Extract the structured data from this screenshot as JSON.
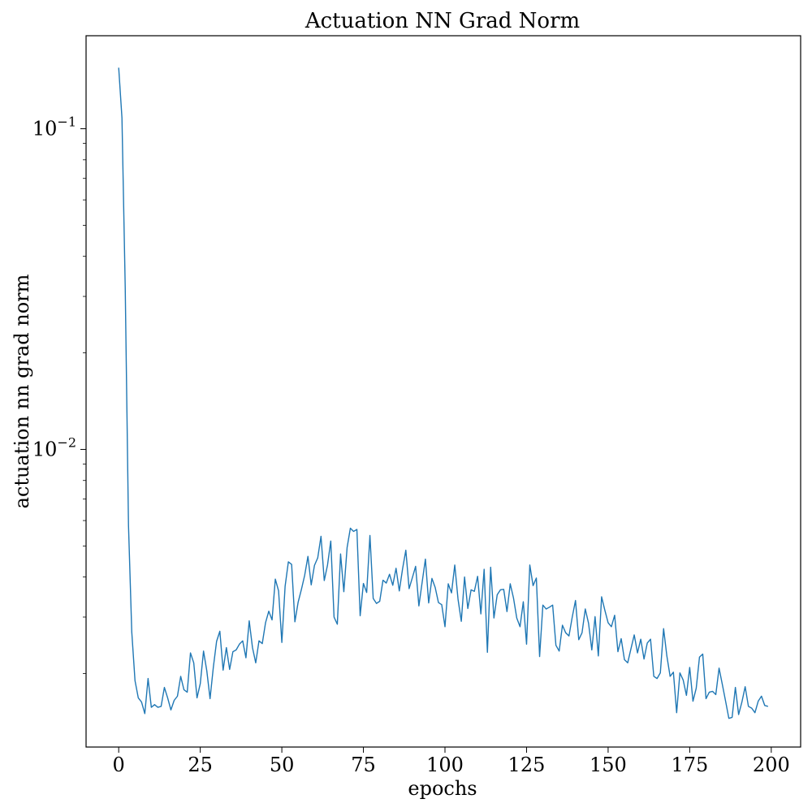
{
  "chart_data": {
    "type": "line",
    "title": "Actuation NN Grad Norm",
    "xlabel": "epochs",
    "ylabel": "actuation nn grad norm",
    "xlim": [
      -10,
      209
    ],
    "ylim": [
      0.00118,
      0.195
    ],
    "yscale": "log",
    "grid": false,
    "line_color": "#1f77b4",
    "x_ticks": [
      0,
      25,
      50,
      75,
      100,
      125,
      150,
      175,
      200
    ],
    "x_tick_labels": [
      "0",
      "25",
      "50",
      "75",
      "100",
      "125",
      "150",
      "175",
      "200"
    ],
    "y_ticks": [
      {
        "value": 0.1,
        "base": "10",
        "exponent": "−1"
      },
      {
        "value": 0.01,
        "base": "10",
        "exponent": "−2"
      }
    ],
    "series": [
      {
        "x": [
          0,
          1,
          2,
          3,
          4,
          5,
          6,
          7,
          8,
          9,
          10,
          11,
          12,
          13,
          14,
          15,
          16,
          17,
          18,
          19,
          20,
          21,
          22,
          23,
          24,
          25,
          26,
          27,
          28,
          29,
          30,
          31,
          32,
          33,
          34,
          35,
          36,
          37,
          38,
          39,
          40,
          41,
          42,
          43,
          44,
          45,
          46,
          47,
          48,
          49,
          50,
          51,
          52,
          53,
          54,
          55,
          56,
          57,
          58,
          59,
          60,
          61,
          62,
          63,
          64,
          65,
          66,
          67,
          68,
          69,
          70,
          71,
          72,
          73,
          74,
          75,
          76,
          77,
          78,
          79,
          80,
          81,
          82,
          83,
          84,
          85,
          86,
          87,
          88,
          89,
          90,
          91,
          92,
          93,
          94,
          95,
          96,
          97,
          98,
          99,
          100,
          101,
          102,
          103,
          104,
          105,
          106,
          107,
          108,
          109,
          110,
          111,
          112,
          113,
          114,
          115,
          116,
          117,
          118,
          119,
          120,
          121,
          122,
          123,
          124,
          125,
          126,
          127,
          128,
          129,
          130,
          131,
          132,
          133,
          134,
          135,
          136,
          137,
          138,
          139,
          140,
          141,
          142,
          143,
          144,
          145,
          146,
          147,
          148,
          149,
          150,
          151,
          152,
          153,
          154,
          155,
          156,
          157,
          158,
          159,
          160,
          161,
          162,
          163,
          164,
          165,
          166,
          167,
          168,
          169,
          170,
          171,
          172,
          173,
          174,
          175,
          176,
          177,
          178,
          179,
          180,
          181,
          182,
          183,
          184,
          185,
          186,
          187,
          188,
          189,
          190,
          191,
          192,
          193,
          194,
          195,
          196,
          197,
          198,
          199
        ],
        "y": [
          0.155,
          0.108,
          0.032,
          0.0058,
          0.0027,
          0.0019,
          0.00168,
          0.00163,
          0.0015,
          0.00193,
          0.00157,
          0.0016,
          0.00157,
          0.00158,
          0.00181,
          0.00168,
          0.00154,
          0.00165,
          0.0017,
          0.00196,
          0.00178,
          0.00175,
          0.00232,
          0.00216,
          0.00168,
          0.00186,
          0.00235,
          0.00204,
          0.00167,
          0.00209,
          0.00252,
          0.00271,
          0.00205,
          0.00241,
          0.00206,
          0.00234,
          0.00237,
          0.00247,
          0.00253,
          0.00224,
          0.00292,
          0.00241,
          0.00216,
          0.00253,
          0.00248,
          0.00288,
          0.00313,
          0.00294,
          0.00394,
          0.00362,
          0.0025,
          0.00374,
          0.00446,
          0.00438,
          0.0029,
          0.00334,
          0.00366,
          0.00405,
          0.00464,
          0.00378,
          0.00435,
          0.00459,
          0.00536,
          0.0039,
          0.00436,
          0.00518,
          0.003,
          0.00285,
          0.00472,
          0.0036,
          0.00494,
          0.00568,
          0.00555,
          0.00563,
          0.00303,
          0.00382,
          0.00358,
          0.00539,
          0.00343,
          0.00331,
          0.00336,
          0.00391,
          0.00383,
          0.00408,
          0.00377,
          0.00426,
          0.00362,
          0.00424,
          0.00485,
          0.00368,
          0.00398,
          0.00432,
          0.00325,
          0.00385,
          0.00455,
          0.00332,
          0.00396,
          0.00371,
          0.00333,
          0.00328,
          0.0028,
          0.00381,
          0.00357,
          0.00436,
          0.00341,
          0.00291,
          0.004,
          0.00319,
          0.00365,
          0.00361,
          0.00402,
          0.00307,
          0.00423,
          0.00233,
          0.00429,
          0.00298,
          0.00352,
          0.00365,
          0.00366,
          0.00312,
          0.00381,
          0.00344,
          0.00298,
          0.0028,
          0.00335,
          0.00247,
          0.00436,
          0.00376,
          0.00397,
          0.00226,
          0.00327,
          0.00318,
          0.00322,
          0.00327,
          0.00245,
          0.00235,
          0.00283,
          0.00268,
          0.00262,
          0.003,
          0.00338,
          0.00255,
          0.00268,
          0.00318,
          0.00287,
          0.00237,
          0.00301,
          0.00227,
          0.00347,
          0.00315,
          0.00288,
          0.0028,
          0.00304,
          0.00234,
          0.00257,
          0.00221,
          0.00216,
          0.00239,
          0.00264,
          0.00232,
          0.00256,
          0.00222,
          0.00249,
          0.00256,
          0.00196,
          0.00193,
          0.00201,
          0.00276,
          0.00227,
          0.00196,
          0.00202,
          0.00151,
          0.00201,
          0.00191,
          0.00171,
          0.00209,
          0.00164,
          0.0018,
          0.00225,
          0.0023,
          0.00167,
          0.00175,
          0.00176,
          0.00172,
          0.00208,
          0.00185,
          0.00164,
          0.00145,
          0.00146,
          0.00181,
          0.00149,
          0.00163,
          0.00182,
          0.00158,
          0.00156,
          0.00151,
          0.00164,
          0.0017,
          0.00159,
          0.00158
        ]
      }
    ]
  }
}
